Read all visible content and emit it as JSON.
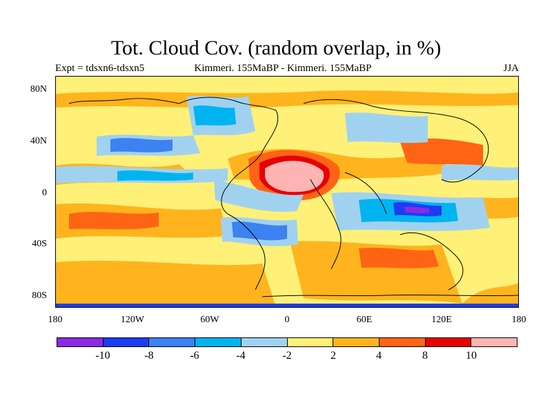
{
  "title": "Tot. Cloud Cov. (random overlap, in %)",
  "subtitle_left": "Expt = tdsxn6-tdsxn5",
  "subtitle_center": "Kimmeri. 155MaBP - Kimmeri. 155MaBP",
  "subtitle_right": "JJA",
  "x_ticks": [
    "180",
    "120W",
    "60W",
    "0",
    "60E",
    "120E",
    "180"
  ],
  "y_ticks": [
    "80N",
    "40N",
    "0",
    "40S",
    "80S"
  ],
  "colorbar": {
    "colors": [
      "#8a2be2",
      "#1e3cf0",
      "#3c82f0",
      "#00b4f0",
      "#a0d2f0",
      "#fff078",
      "#ffb41e",
      "#ff6414",
      "#e60000",
      "#ffb4b4"
    ],
    "labels": [
      "-10",
      "-8",
      "-6",
      "-4",
      "-2",
      "2",
      "4",
      "8",
      "10"
    ]
  },
  "colors": {
    "ocean": "#fff078",
    "coast": "#000000"
  }
}
